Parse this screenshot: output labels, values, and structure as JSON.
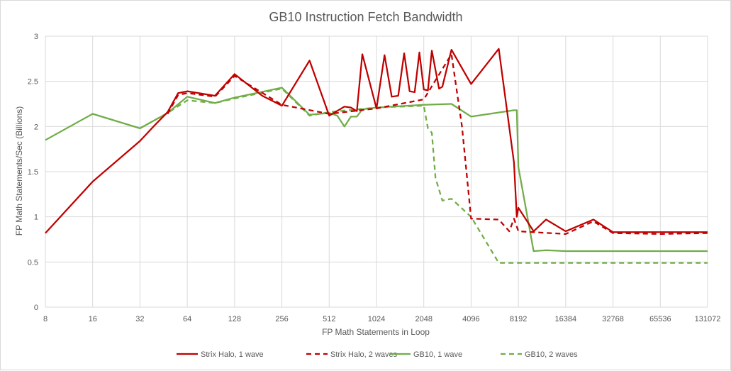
{
  "chart_data": {
    "type": "line",
    "title": "GB10 Instruction Fetch Bandwidth",
    "xlabel": "FP Math Statements  in Loop",
    "ylabel": "FP Math Statements/Sec  (Billions)",
    "xscale": "log2",
    "xlim": [
      8,
      131072
    ],
    "ylim": [
      0,
      3
    ],
    "x_ticks": [
      "8",
      "16",
      "32",
      "64",
      "128",
      "256",
      "512",
      "1024",
      "2048",
      "4096",
      "8192",
      "16384",
      "32768",
      "65536",
      "131072"
    ],
    "y_ticks": [
      "0",
      "0.5",
      "1",
      "1.5",
      "2",
      "2.5",
      "3"
    ],
    "grid": "vertical and horizontal",
    "legend_position": "bottom",
    "series": [
      {
        "name": "Strix Halo, 1 wave",
        "color": "#c00000",
        "dash": "solid",
        "points": [
          [
            8,
            0.82
          ],
          [
            16,
            1.39
          ],
          [
            32,
            1.84
          ],
          [
            40,
            2.02
          ],
          [
            48,
            2.16
          ],
          [
            56,
            2.37
          ],
          [
            64,
            2.39
          ],
          [
            96,
            2.34
          ],
          [
            128,
            2.58
          ],
          [
            192,
            2.34
          ],
          [
            256,
            2.23
          ],
          [
            384,
            2.73
          ],
          [
            512,
            2.12
          ],
          [
            640,
            2.22
          ],
          [
            704,
            2.21
          ],
          [
            768,
            2.17
          ],
          [
            832,
            2.8
          ],
          [
            1024,
            2.2
          ],
          [
            1152,
            2.79
          ],
          [
            1280,
            2.33
          ],
          [
            1408,
            2.34
          ],
          [
            1536,
            2.81
          ],
          [
            1664,
            2.39
          ],
          [
            1792,
            2.38
          ],
          [
            1920,
            2.82
          ],
          [
            2048,
            2.41
          ],
          [
            2176,
            2.4
          ],
          [
            2304,
            2.84
          ],
          [
            2560,
            2.42
          ],
          [
            2688,
            2.44
          ],
          [
            3072,
            2.85
          ],
          [
            4096,
            2.47
          ],
          [
            6144,
            2.86
          ],
          [
            7680,
            1.6
          ],
          [
            8000,
            1.0
          ],
          [
            8192,
            1.1
          ],
          [
            10240,
            0.84
          ],
          [
            12288,
            0.97
          ],
          [
            16384,
            0.84
          ],
          [
            24576,
            0.97
          ],
          [
            32768,
            0.83
          ],
          [
            131072,
            0.83
          ]
        ]
      },
      {
        "name": "Strix Halo, 2 waves",
        "color": "#c00000",
        "dash": "dashed",
        "points": [
          [
            48,
            2.14
          ],
          [
            56,
            2.35
          ],
          [
            64,
            2.37
          ],
          [
            96,
            2.33
          ],
          [
            128,
            2.56
          ],
          [
            256,
            2.24
          ],
          [
            512,
            2.14
          ],
          [
            1024,
            2.2
          ],
          [
            2048,
            2.3
          ],
          [
            3072,
            2.8
          ],
          [
            3584,
            2.0
          ],
          [
            4096,
            0.98
          ],
          [
            6144,
            0.97
          ],
          [
            7168,
            0.84
          ],
          [
            7680,
            0.98
          ],
          [
            8192,
            0.84
          ],
          [
            10240,
            0.83
          ],
          [
            16384,
            0.81
          ],
          [
            24576,
            0.95
          ],
          [
            32768,
            0.82
          ],
          [
            65536,
            0.81
          ],
          [
            131072,
            0.82
          ]
        ]
      },
      {
        "name": "GB10, 1 wave",
        "color": "#70ad47",
        "dash": "solid",
        "points": [
          [
            8,
            1.85
          ],
          [
            16,
            2.14
          ],
          [
            32,
            1.98
          ],
          [
            48,
            2.15
          ],
          [
            64,
            2.33
          ],
          [
            96,
            2.26
          ],
          [
            128,
            2.32
          ],
          [
            256,
            2.43
          ],
          [
            384,
            2.13
          ],
          [
            512,
            2.15
          ],
          [
            576,
            2.12
          ],
          [
            640,
            2.0
          ],
          [
            704,
            2.11
          ],
          [
            768,
            2.11
          ],
          [
            832,
            2.19
          ],
          [
            1024,
            2.21
          ],
          [
            2048,
            2.24
          ],
          [
            3072,
            2.25
          ],
          [
            4096,
            2.11
          ],
          [
            7680,
            2.18
          ],
          [
            8000,
            2.18
          ],
          [
            8192,
            1.55
          ],
          [
            10240,
            0.62
          ],
          [
            12288,
            0.63
          ],
          [
            16384,
            0.62
          ],
          [
            131072,
            0.62
          ]
        ]
      },
      {
        "name": "GB10, 2 waves",
        "color": "#70ad47",
        "dash": "dashed",
        "points": [
          [
            32,
            1.98
          ],
          [
            48,
            2.15
          ],
          [
            64,
            2.29
          ],
          [
            96,
            2.26
          ],
          [
            128,
            2.31
          ],
          [
            256,
            2.42
          ],
          [
            384,
            2.12
          ],
          [
            512,
            2.16
          ],
          [
            1024,
            2.21
          ],
          [
            2048,
            2.23
          ],
          [
            2176,
            1.98
          ],
          [
            2304,
            1.93
          ],
          [
            2432,
            1.43
          ],
          [
            2688,
            1.18
          ],
          [
            3072,
            1.2
          ],
          [
            4096,
            1.0
          ],
          [
            6144,
            0.49
          ],
          [
            8192,
            0.49
          ],
          [
            131072,
            0.49
          ]
        ]
      }
    ]
  }
}
